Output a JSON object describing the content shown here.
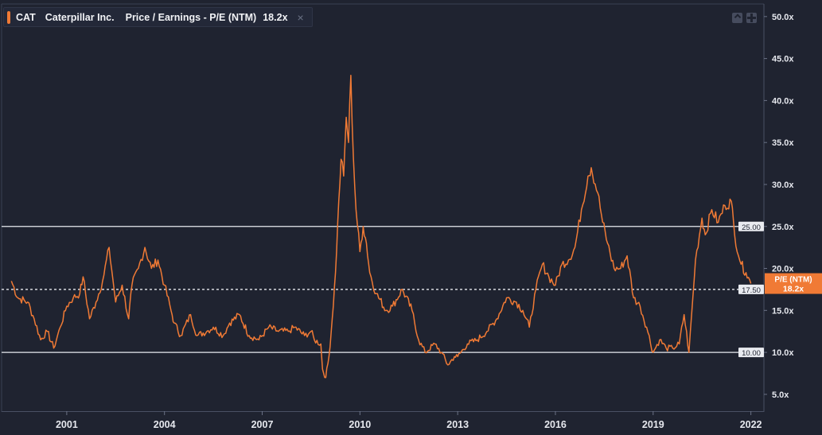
{
  "legend": {
    "ticker": "CAT",
    "company": "Caterpillar Inc.",
    "metric": "Price / Earnings - P/E (NTM)",
    "value": "18.2x",
    "close_glyph": "×",
    "icons": [
      "expand-icon",
      "collapse-icon",
      "close-icon"
    ]
  },
  "colors": {
    "background": "#1f2330",
    "series": "#f07a35",
    "reference_line": "#e9ebf0",
    "axis_text": "#e6e8ee"
  },
  "chart_data": {
    "type": "line",
    "title": "",
    "xlabel": "",
    "ylabel": "",
    "x_ticks": [
      "2001",
      "2004",
      "2007",
      "2010",
      "2013",
      "2016",
      "2019",
      "2022"
    ],
    "x_range": [
      1999.0,
      2022.4
    ],
    "y_ticks": [
      "5.0x",
      "10.0x",
      "15.0x",
      "20.0x",
      "25.0x",
      "30.0x",
      "35.0x",
      "40.0x",
      "45.0x",
      "50.0x"
    ],
    "y_range": [
      3.0,
      51.5
    ],
    "grid": false,
    "reference_lines": [
      {
        "value": 25.0,
        "label": "25.00",
        "style": "solid"
      },
      {
        "value": 17.5,
        "label": "17.50",
        "style": "dashed"
      },
      {
        "value": 10.0,
        "label": "10.00",
        "style": "solid"
      }
    ],
    "current_marker": {
      "label": "P/E (NTM)",
      "value_label": "18.2x",
      "value": 18.2
    },
    "series": [
      {
        "x": [
          1999.3,
          1999.5,
          1999.8,
          2000.0,
          2000.2,
          2000.4,
          2000.6,
          2000.8,
          2001.0,
          2001.2,
          2001.4,
          2001.5,
          2001.7,
          2001.9,
          2002.1,
          2002.3,
          2002.5,
          2002.7,
          2002.9,
          2003.0,
          2003.2,
          2003.4,
          2003.6,
          2003.8,
          2004.0,
          2004.2,
          2004.3,
          2004.5,
          2004.8,
          2005.0,
          2005.3,
          2005.5,
          2005.8,
          2006.0,
          2006.3,
          2006.6,
          2006.9,
          2007.2,
          2007.5,
          2007.8,
          2008.0,
          2008.3,
          2008.5,
          2008.6,
          2008.8,
          2008.85,
          2008.95,
          2009.05,
          2009.15,
          2009.25,
          2009.35,
          2009.42,
          2009.5,
          2009.58,
          2009.65,
          2009.72,
          2009.8,
          2009.88,
          2010.0,
          2010.1,
          2010.2,
          2010.3,
          2010.5,
          2010.8,
          2011.0,
          2011.3,
          2011.6,
          2011.8,
          2012.0,
          2012.3,
          2012.5,
          2012.7,
          2012.9,
          2013.0,
          2013.3,
          2013.6,
          2013.9,
          2014.2,
          2014.5,
          2014.8,
          2015.0,
          2015.2,
          2015.4,
          2015.6,
          2015.8,
          2016.0,
          2016.2,
          2016.4,
          2016.6,
          2016.8,
          2017.0,
          2017.1,
          2017.3,
          2017.45,
          2017.6,
          2017.8,
          2018.0,
          2018.2,
          2018.4,
          2018.6,
          2018.8,
          2019.0,
          2019.2,
          2019.4,
          2019.6,
          2019.8,
          2019.95,
          2020.1,
          2020.3,
          2020.5,
          2020.6,
          2020.8,
          2021.0,
          2021.2,
          2021.4,
          2021.5,
          2021.7,
          2021.85,
          2022.0
        ],
        "y": [
          18.5,
          16.5,
          16.0,
          14.0,
          11.5,
          12.5,
          10.5,
          13.0,
          15.5,
          16.5,
          17.0,
          19.0,
          14.0,
          16.0,
          18.5,
          22.5,
          16.0,
          18.0,
          14.0,
          18.0,
          20.0,
          22.5,
          20.0,
          21.0,
          18.0,
          15.0,
          13.5,
          12.0,
          14.5,
          12.0,
          12.5,
          13.0,
          12.0,
          13.5,
          14.5,
          12.0,
          11.5,
          13.0,
          12.5,
          12.5,
          13.0,
          12.0,
          12.5,
          11.5,
          11.0,
          8.0,
          7.0,
          9.5,
          14.0,
          19.5,
          28.0,
          33.0,
          31.0,
          38.0,
          35.0,
          43.0,
          33.0,
          27.0,
          22.0,
          25.0,
          23.0,
          19.5,
          17.0,
          15.0,
          15.5,
          17.5,
          15.0,
          11.5,
          10.0,
          11.0,
          10.0,
          8.5,
          9.5,
          9.5,
          11.0,
          11.5,
          12.5,
          14.0,
          16.5,
          16.0,
          15.0,
          13.0,
          17.5,
          20.5,
          19.0,
          18.0,
          20.5,
          21.0,
          22.5,
          27.0,
          31.0,
          32.0,
          29.0,
          25.5,
          23.0,
          20.0,
          20.0,
          21.5,
          16.5,
          15.5,
          13.0,
          10.0,
          11.5,
          10.5,
          10.5,
          11.0,
          14.5,
          10.0,
          21.0,
          26.0,
          24.0,
          27.0,
          25.5,
          27.5,
          28.0,
          24.0,
          20.5,
          19.5,
          18.2
        ]
      }
    ]
  }
}
